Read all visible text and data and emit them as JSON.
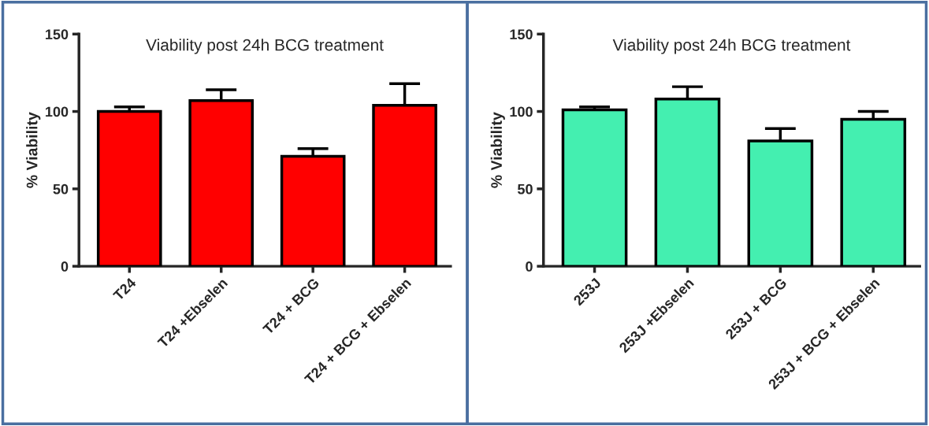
{
  "chart_data": [
    {
      "type": "bar",
      "title": "Viability post 24h BCG treatment",
      "ylabel": "% Viability",
      "categories": [
        "T24",
        "T24 +Ebselen",
        "T24 + BCG",
        "T24 + BCG + Ebselen"
      ],
      "values": [
        100,
        107,
        71,
        104
      ],
      "errors": [
        3,
        7,
        5,
        14
      ],
      "color": "#ff0000",
      "ylim": [
        0,
        150
      ],
      "yticks": [
        0,
        50,
        100,
        150
      ],
      "grid": false,
      "legend": false
    },
    {
      "type": "bar",
      "title": "Viability post 24h BCG treatment",
      "ylabel": "% Viability",
      "categories": [
        "253J",
        "253J +Ebselen",
        "253J + BCG",
        "253J + BCG + Ebselen"
      ],
      "values": [
        101,
        108,
        81,
        95
      ],
      "errors": [
        2,
        8,
        8,
        5
      ],
      "color": "#44efb0",
      "ylim": [
        0,
        150
      ],
      "yticks": [
        0,
        50,
        100,
        150
      ],
      "grid": false,
      "legend": false
    }
  ]
}
